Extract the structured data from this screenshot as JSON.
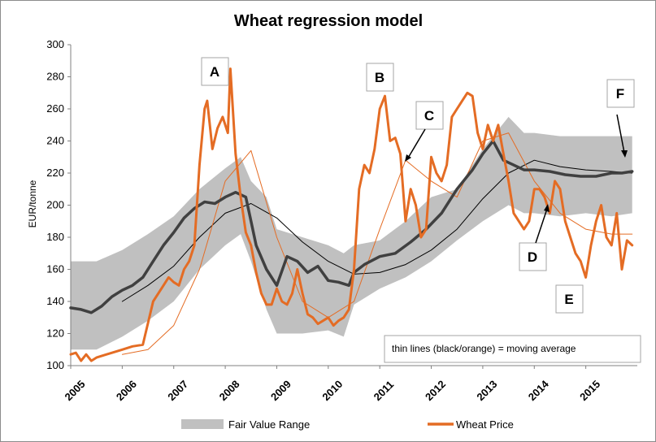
{
  "chart_data": {
    "type": "line",
    "title": "Wheat regression model",
    "xlabel": "",
    "ylabel": "EUR/tonne",
    "ylim": [
      100,
      300
    ],
    "y_ticks": [
      "100",
      "120",
      "140",
      "160",
      "180",
      "200",
      "220",
      "240",
      "260",
      "280",
      "300"
    ],
    "x_ticks": [
      "2005",
      "2006",
      "2007",
      "2008",
      "2009",
      "2010",
      "2011",
      "2012",
      "2013",
      "2014",
      "2015"
    ],
    "xlim": [
      2005.0,
      2016.0
    ],
    "grid": false,
    "legend_position": "bottom",
    "colors": {
      "band": "#c0c0c0",
      "fair_value": "#404040",
      "wheat": "#e46c24",
      "fair_value_ma": "#000000",
      "wheat_ma": "#e46c24"
    },
    "series": [
      {
        "name": "Fair Value Range",
        "type": "band",
        "x": [
          2005.0,
          2005.5,
          2006.0,
          2006.5,
          2007.0,
          2007.5,
          2008.0,
          2008.3,
          2008.5,
          2008.8,
          2009.0,
          2009.5,
          2010.0,
          2010.3,
          2010.5,
          2011.0,
          2011.5,
          2012.0,
          2012.5,
          2013.0,
          2013.5,
          2013.8,
          2014.0,
          2014.5,
          2015.0,
          2015.5,
          2015.9
        ],
        "upper": [
          165,
          165,
          172,
          182,
          193,
          210,
          223,
          230,
          215,
          205,
          185,
          180,
          175,
          170,
          175,
          178,
          190,
          205,
          210,
          235,
          255,
          245,
          245,
          243,
          243,
          243,
          243
        ],
        "lower": [
          110,
          110,
          118,
          128,
          140,
          160,
          175,
          182,
          165,
          135,
          120,
          120,
          122,
          118,
          138,
          148,
          155,
          165,
          178,
          190,
          200,
          195,
          195,
          193,
          195,
          193,
          195
        ]
      },
      {
        "name": "Fair value",
        "x": [
          2005.0,
          2005.2,
          2005.4,
          2005.6,
          2005.8,
          2006.0,
          2006.2,
          2006.4,
          2006.6,
          2006.8,
          2007.0,
          2007.2,
          2007.4,
          2007.6,
          2007.8,
          2008.0,
          2008.2,
          2008.4,
          2008.5,
          2008.6,
          2008.8,
          2009.0,
          2009.2,
          2009.4,
          2009.6,
          2009.8,
          2010.0,
          2010.2,
          2010.4,
          2010.5,
          2010.7,
          2011.0,
          2011.3,
          2011.6,
          2011.9,
          2012.2,
          2012.5,
          2012.8,
          2013.0,
          2013.2,
          2013.4,
          2013.6,
          2013.8,
          2014.0,
          2014.3,
          2014.6,
          2014.9,
          2015.2,
          2015.5,
          2015.7,
          2015.9
        ],
        "values": [
          136,
          135,
          133,
          137,
          143,
          147,
          150,
          155,
          165,
          175,
          183,
          192,
          198,
          202,
          201,
          205,
          208,
          205,
          190,
          175,
          160,
          150,
          168,
          165,
          158,
          162,
          153,
          152,
          150,
          158,
          163,
          168,
          170,
          177,
          185,
          195,
          210,
          222,
          232,
          240,
          228,
          225,
          222,
          222,
          221,
          219,
          218,
          218,
          220,
          220,
          221
        ]
      },
      {
        "name": "Wheat Price",
        "x": [
          2005.0,
          2005.1,
          2005.2,
          2005.3,
          2005.4,
          2005.5,
          2005.6,
          2005.8,
          2006.0,
          2006.2,
          2006.4,
          2006.6,
          2006.8,
          2006.9,
          2007.0,
          2007.1,
          2007.2,
          2007.3,
          2007.4,
          2007.5,
          2007.6,
          2007.65,
          2007.75,
          2007.85,
          2007.95,
          2008.05,
          2008.1,
          2008.2,
          2008.3,
          2008.4,
          2008.5,
          2008.6,
          2008.7,
          2008.8,
          2008.9,
          2009.0,
          2009.1,
          2009.2,
          2009.3,
          2009.4,
          2009.5,
          2009.6,
          2009.7,
          2009.8,
          2009.9,
          2010.0,
          2010.1,
          2010.2,
          2010.3,
          2010.4,
          2010.5,
          2010.6,
          2010.7,
          2010.8,
          2010.9,
          2011.0,
          2011.1,
          2011.2,
          2011.3,
          2011.4,
          2011.5,
          2011.6,
          2011.7,
          2011.8,
          2011.9,
          2012.0,
          2012.1,
          2012.2,
          2012.3,
          2012.4,
          2012.5,
          2012.6,
          2012.7,
          2012.8,
          2012.9,
          2013.0,
          2013.1,
          2013.2,
          2013.3,
          2013.4,
          2013.5,
          2013.6,
          2013.7,
          2013.8,
          2013.9,
          2014.0,
          2014.1,
          2014.2,
          2014.3,
          2014.4,
          2014.5,
          2014.6,
          2014.7,
          2014.8,
          2014.9,
          2015.0,
          2015.1,
          2015.2,
          2015.3,
          2015.4,
          2015.5,
          2015.6,
          2015.7,
          2015.8,
          2015.9
        ],
        "values": [
          107,
          108,
          103,
          107,
          103,
          105,
          106,
          108,
          110,
          112,
          113,
          140,
          150,
          155,
          152,
          150,
          160,
          165,
          175,
          225,
          260,
          265,
          235,
          248,
          255,
          245,
          285,
          232,
          205,
          183,
          175,
          158,
          145,
          138,
          138,
          148,
          140,
          138,
          145,
          160,
          145,
          132,
          130,
          126,
          128,
          130,
          125,
          128,
          130,
          135,
          160,
          210,
          225,
          220,
          235,
          260,
          268,
          240,
          242,
          232,
          190,
          210,
          200,
          180,
          185,
          230,
          220,
          215,
          225,
          255,
          260,
          265,
          270,
          268,
          245,
          235,
          250,
          240,
          250,
          232,
          215,
          195,
          190,
          185,
          190,
          210,
          210,
          205,
          195,
          215,
          210,
          190,
          180,
          170,
          165,
          155,
          175,
          190,
          200,
          180,
          175,
          195,
          160,
          178,
          175
        ]
      },
      {
        "name": "Fair value moving average",
        "x": [
          2006.0,
          2006.5,
          2007.0,
          2007.5,
          2008.0,
          2008.5,
          2009.0,
          2009.5,
          2010.0,
          2010.5,
          2011.0,
          2011.5,
          2012.0,
          2012.5,
          2013.0,
          2013.5,
          2014.0,
          2014.5,
          2015.0,
          2015.5,
          2015.9
        ],
        "values": [
          140,
          150,
          162,
          180,
          195,
          201,
          192,
          177,
          165,
          157,
          158,
          163,
          172,
          185,
          204,
          220,
          228,
          224,
          222,
          221,
          220
        ]
      },
      {
        "name": "Wheat moving average",
        "x": [
          2006.0,
          2006.5,
          2007.0,
          2007.5,
          2008.0,
          2008.5,
          2009.0,
          2009.5,
          2010.0,
          2010.5,
          2011.0,
          2011.5,
          2012.0,
          2012.5,
          2013.0,
          2013.5,
          2014.0,
          2014.5,
          2015.0,
          2015.5,
          2015.9
        ],
        "values": [
          107,
          110,
          125,
          160,
          215,
          234,
          180,
          140,
          130,
          140,
          185,
          228,
          215,
          205,
          240,
          245,
          215,
          195,
          185,
          182,
          182
        ]
      }
    ],
    "legend": [
      "Fair Value Range",
      "Wheat Price"
    ],
    "annotations": [
      {
        "label": "A"
      },
      {
        "label": "B"
      },
      {
        "label": "C"
      },
      {
        "label": "D"
      },
      {
        "label": "E"
      },
      {
        "label": "F"
      }
    ],
    "note": "thin lines (black/orange) = moving average"
  }
}
